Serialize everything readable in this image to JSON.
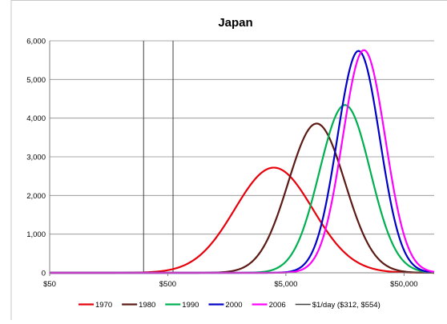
{
  "chart_data": {
    "type": "line",
    "title": "Japan",
    "xlabel": "",
    "ylabel": "",
    "x_scale": "log",
    "xlim": [
      50,
      90000
    ],
    "ylim": [
      0,
      6000
    ],
    "x_ticks": [
      {
        "value": 50,
        "label": "$50"
      },
      {
        "value": 500,
        "label": "$500"
      },
      {
        "value": 5000,
        "label": "$5,000"
      },
      {
        "value": 50000,
        "label": "$50,000"
      }
    ],
    "y_ticks": [
      {
        "value": 0,
        "label": "0"
      },
      {
        "value": 1000,
        "label": "1,000"
      },
      {
        "value": 2000,
        "label": "2,000"
      },
      {
        "value": 3000,
        "label": "3,000"
      },
      {
        "value": 4000,
        "label": "4,000"
      },
      {
        "value": 5000,
        "label": "5,000"
      },
      {
        "value": 6000,
        "label": "6,000"
      }
    ],
    "grid": {
      "horizontal": true,
      "vertical": false
    },
    "legend_position": "bottom",
    "series": [
      {
        "name": "1970",
        "color": "#e8000b",
        "peak_x": 3950,
        "peak_y": 2720,
        "sigma_log10": 0.33
      },
      {
        "name": "1980",
        "color": "#5c1a14",
        "peak_x": 9100,
        "peak_y": 3860,
        "sigma_log10": 0.24
      },
      {
        "name": "1990",
        "color": "#00b050",
        "peak_x": 15800,
        "peak_y": 4340,
        "sigma_log10": 0.215
      },
      {
        "name": "2000",
        "color": "#0000c8",
        "peak_x": 20600,
        "peak_y": 5740,
        "sigma_log10": 0.18
      },
      {
        "name": "2006",
        "color": "#ff00ff",
        "peak_x": 22900,
        "peak_y": 5760,
        "sigma_log10": 0.18
      }
    ],
    "reference_lines": {
      "name": "$1/day ($312, $554)",
      "color": "#404040",
      "x_values": [
        312,
        554
      ]
    }
  }
}
